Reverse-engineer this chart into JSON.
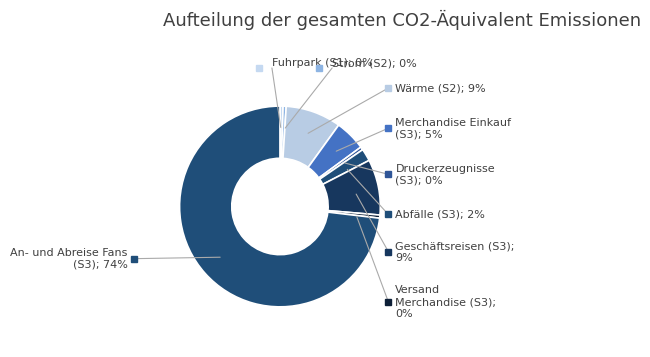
{
  "title": "Aufteilung der gesamten CO2-Äquivalent Emissionen",
  "slices": [
    {
      "label": "Fuhrpark (S1); 0%",
      "value": 0.5,
      "color": "#c5d9f1"
    },
    {
      "label": "Strom (S2); 0%",
      "value": 0.5,
      "color": "#8db4e3"
    },
    {
      "label": "Wärme (S2); 9%",
      "value": 9.0,
      "color": "#b8cce4"
    },
    {
      "label": "Merchandise Einkauf\n(S3); 5%",
      "value": 5.0,
      "color": "#4472c4"
    },
    {
      "label": "Druckerzeugnisse\n(S3); 0%",
      "value": 0.5,
      "color": "#2f5597"
    },
    {
      "label": "Abfälle (S3); 2%",
      "value": 2.0,
      "color": "#1f4e79"
    },
    {
      "label": "Geschäftsreisen (S3);\n9%",
      "value": 9.0,
      "color": "#17375e"
    },
    {
      "label": "Versand\nMerchandise (S3);\n0%",
      "value": 0.5,
      "color": "#0d1f37"
    },
    {
      "label": "An- und Abreise Fans\n(S3); 74%",
      "value": 73.5,
      "color": "#1f4e79"
    }
  ],
  "background_color": "#ffffff",
  "title_fontsize": 13,
  "label_fontsize": 8,
  "title_color": "#404040",
  "line_color": "#aaaaaa"
}
